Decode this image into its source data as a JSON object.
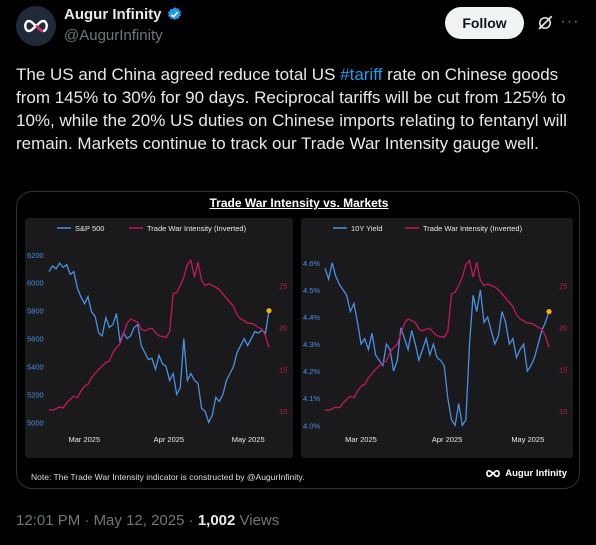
{
  "author": {
    "display_name": "Augur Infinity",
    "handle": "@AugurInfinity",
    "verified": true,
    "avatar_icon": "infinity-logo-icon"
  },
  "actions": {
    "follow_label": "Follow",
    "grok_icon": "grok-icon",
    "more_icon": "more-icon"
  },
  "tweet": {
    "text_before": "The US and China agreed reduce total US ",
    "hashtag": "#tariff",
    "text_after": " rate on Chinese goods from 145% to 30% for 90 days. Reciprocal tariffs will be cut from 125% to 10%, while the 20% US duties on Chinese imports relating to fentanyl will remain. Markets continue to track our Trade War Intensity gauge well."
  },
  "colors": {
    "blue_series": "#4a90e2",
    "pink_series": "#c2185b",
    "highlight_dot": "#f5b301",
    "link": "#1d9bf0"
  },
  "chart_data": [
    {
      "type": "line",
      "title": "Trade War Intensity vs. Markets",
      "x_ticks": [
        "Mar 2025",
        "Apr 2025",
        "May 2025"
      ],
      "y_left": {
        "ticks": [
          "6200",
          "6000",
          "5800",
          "5600",
          "5400",
          "5200",
          "5000"
        ],
        "ylim": [
          4960,
          6220
        ]
      },
      "y_right": {
        "ticks": [
          "10",
          "15",
          "20",
          "25"
        ],
        "ylim": [
          29,
          8
        ],
        "inverted": true
      },
      "series": [
        {
          "name": "S&P 500",
          "axis": "left",
          "values": [
            6080,
            6120,
            6100,
            6140,
            6110,
            6130,
            6060,
            6080,
            5960,
            5900,
            5850,
            5900,
            5790,
            5760,
            5640,
            5620,
            5750,
            5680,
            5700,
            5780,
            5580,
            5640,
            5600,
            5620,
            5680,
            5700,
            5550,
            5500,
            5450,
            5460,
            5380,
            5480,
            5420,
            5400,
            5300,
            5350,
            5200,
            5250,
            5600,
            5300,
            5350,
            5300,
            5280,
            5100,
            5080,
            5000,
            5050,
            5180,
            5150,
            5200,
            5300,
            5350,
            5400,
            5500,
            5550,
            5600,
            5550,
            5600,
            5650,
            5640,
            5660,
            5640,
            5800
          ]
        },
        {
          "name": "Trade War Intensity (Inverted)",
          "axis": "right",
          "values": [
            10.2,
            10.1,
            10.3,
            10.5,
            10.4,
            11.0,
            11.4,
            11.8,
            11.6,
            12.4,
            13.0,
            13.2,
            14.0,
            14.5,
            15.0,
            15.4,
            15.8,
            16.0,
            17.0,
            17.6,
            18.0,
            19.2,
            20.5,
            21.0,
            20.8,
            20.6,
            19.8,
            19.6,
            19.8,
            19.9,
            19.4,
            19.0,
            18.9,
            18.8,
            19.5,
            24.0,
            24.2,
            25.0,
            26.0,
            27.5,
            28.0,
            26.0,
            27.8,
            25.6,
            25.0,
            25.2,
            25.0,
            24.8,
            24.5,
            24.0,
            23.5,
            23.0,
            22.5,
            21.5,
            21.0,
            20.8,
            20.5,
            20.5,
            20.3,
            20.0,
            19.8,
            19.0,
            17.6
          ]
        }
      ]
    },
    {
      "type": "line",
      "x_ticks": [
        "Mar 2025",
        "Apr 2025",
        "May 2025"
      ],
      "y_left": {
        "ticks": [
          "4.6%",
          "4.5%",
          "4.4%",
          "4.3%",
          "4.2%",
          "4.1%",
          "4.0%"
        ],
        "ylim": [
          3.99,
          4.64
        ]
      },
      "y_right": {
        "ticks": [
          "10",
          "15",
          "20",
          "25"
        ],
        "ylim": [
          29,
          8
        ],
        "inverted": true
      },
      "series": [
        {
          "name": "10Y Yield",
          "axis": "left",
          "values": [
            4.58,
            4.54,
            4.6,
            4.55,
            4.52,
            4.5,
            4.48,
            4.42,
            4.45,
            4.38,
            4.3,
            4.32,
            4.28,
            4.34,
            4.26,
            4.24,
            4.22,
            4.3,
            4.28,
            4.2,
            4.24,
            4.36,
            4.32,
            4.28,
            4.35,
            4.3,
            4.24,
            4.28,
            4.32,
            4.26,
            4.3,
            4.25,
            4.24,
            4.22,
            4.1,
            4.02,
            4.0,
            4.08,
            4.0,
            4.02,
            4.3,
            4.48,
            4.42,
            4.5,
            4.38,
            4.4,
            4.35,
            4.3,
            4.33,
            4.42,
            4.38,
            4.3,
            4.32,
            4.25,
            4.28,
            4.3,
            4.2,
            4.22,
            4.25,
            4.3,
            4.35,
            4.38,
            4.42
          ]
        },
        {
          "name": "Trade War Intensity (Inverted)",
          "axis": "right",
          "values": [
            10.2,
            10.1,
            10.3,
            10.5,
            10.4,
            11.0,
            11.4,
            11.8,
            11.6,
            12.4,
            13.0,
            13.2,
            14.0,
            14.5,
            15.0,
            15.4,
            15.8,
            16.0,
            17.0,
            17.6,
            18.0,
            19.2,
            20.5,
            21.0,
            20.8,
            20.6,
            19.8,
            19.6,
            19.8,
            19.9,
            19.4,
            19.0,
            18.9,
            18.8,
            19.5,
            24.0,
            24.2,
            25.0,
            26.0,
            27.5,
            28.0,
            26.0,
            27.8,
            25.6,
            25.0,
            25.2,
            25.0,
            24.8,
            24.5,
            24.0,
            23.5,
            23.0,
            22.5,
            21.5,
            21.0,
            20.8,
            20.5,
            20.5,
            20.3,
            20.0,
            19.8,
            19.0,
            17.6
          ]
        }
      ]
    }
  ],
  "chart_note": "Note: The Trade War Intensity indicator is constructed by @AugurInfinity.",
  "chart_brand": "Augur Infinity",
  "meta": {
    "time": "12:01 PM",
    "sep1": " · ",
    "date": "May 12, 2025",
    "sep2": " · ",
    "views_count": "1,002",
    "views_label": " Views"
  }
}
